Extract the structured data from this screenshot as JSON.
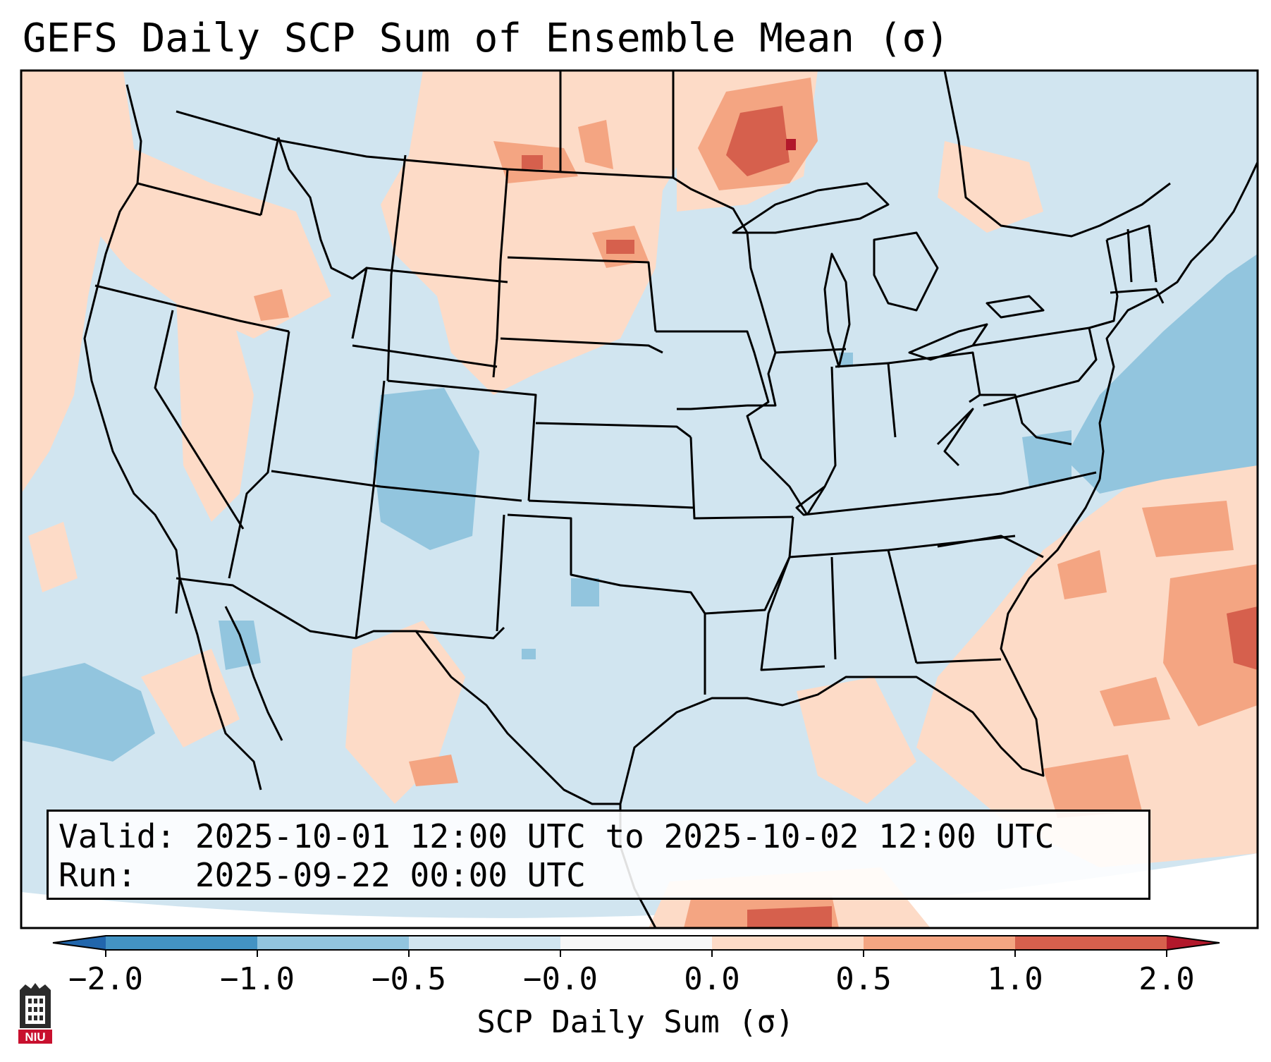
{
  "title": "GEFS Daily SCP Sum of Ensemble Mean (σ)",
  "info": {
    "valid_label": "Valid:",
    "valid_value": "2025-10-01 12:00 UTC to 2025-10-02 12:00 UTC",
    "run_label": "Run:",
    "run_value": "2025-09-22 00:00 UTC"
  },
  "colorbar": {
    "label": "SCP Daily Sum (σ)",
    "ticks": [
      "−2.0",
      "−1.0",
      "−0.5",
      "−0.0",
      "0.0",
      "0.5",
      "1.0",
      "2.0"
    ],
    "bins": [
      {
        "from": -2.0,
        "to": -1.0,
        "color": "#4393c3"
      },
      {
        "from": -1.0,
        "to": -0.5,
        "color": "#92c5de"
      },
      {
        "from": -0.5,
        "to": -0.0,
        "color": "#d1e5f0"
      },
      {
        "from": -0.0,
        "to": 0.0,
        "color": "#f7f7f7"
      },
      {
        "from": 0.0,
        "to": 0.5,
        "color": "#fddbc7"
      },
      {
        "from": 0.5,
        "to": 1.0,
        "color": "#f4a582"
      },
      {
        "from": 1.0,
        "to": 2.0,
        "color": "#d6604d"
      }
    ],
    "under_color": "#2166ac",
    "over_color": "#b2182b"
  },
  "colors": {
    "base": "#d1e5f0",
    "light_red": "#fddbc7",
    "red": "#f4a582",
    "dark_red": "#d6604d",
    "extreme": "#b2182b",
    "light_blue": "#92c5de"
  },
  "logo": {
    "text": "NIU"
  }
}
